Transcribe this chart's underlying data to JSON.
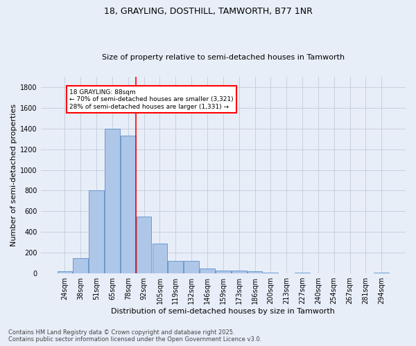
{
  "title1": "18, GRAYLING, DOSTHILL, TAMWORTH, B77 1NR",
  "title2": "Size of property relative to semi-detached houses in Tamworth",
  "xlabel": "Distribution of semi-detached houses by size in Tamworth",
  "ylabel": "Number of semi-detached properties",
  "categories": [
    "24sqm",
    "38sqm",
    "51sqm",
    "65sqm",
    "78sqm",
    "92sqm",
    "105sqm",
    "119sqm",
    "132sqm",
    "146sqm",
    "159sqm",
    "173sqm",
    "186sqm",
    "200sqm",
    "213sqm",
    "227sqm",
    "240sqm",
    "254sqm",
    "267sqm",
    "281sqm",
    "294sqm"
  ],
  "values": [
    20,
    145,
    805,
    1400,
    1330,
    550,
    290,
    120,
    120,
    45,
    25,
    25,
    20,
    5,
    0,
    5,
    0,
    0,
    0,
    0,
    10
  ],
  "bar_color": "#aec6e8",
  "bar_edge_color": "#5b8fc9",
  "annotation_text": "18 GRAYLING: 88sqm\n← 70% of semi-detached houses are smaller (3,321)\n28% of semi-detached houses are larger (1,331) →",
  "footer1": "Contains HM Land Registry data © Crown copyright and database right 2025.",
  "footer2": "Contains public sector information licensed under the Open Government Licence v3.0.",
  "bg_color": "#e8eef8",
  "grid_color": "#c8d0e0",
  "ylim": [
    0,
    1900
  ],
  "yticks": [
    0,
    200,
    400,
    600,
    800,
    1000,
    1200,
    1400,
    1600,
    1800
  ],
  "property_bin_idx": 4,
  "title1_fontsize": 9,
  "title2_fontsize": 8,
  "tick_fontsize": 7,
  "ylabel_fontsize": 8,
  "xlabel_fontsize": 8,
  "footer_fontsize": 6
}
